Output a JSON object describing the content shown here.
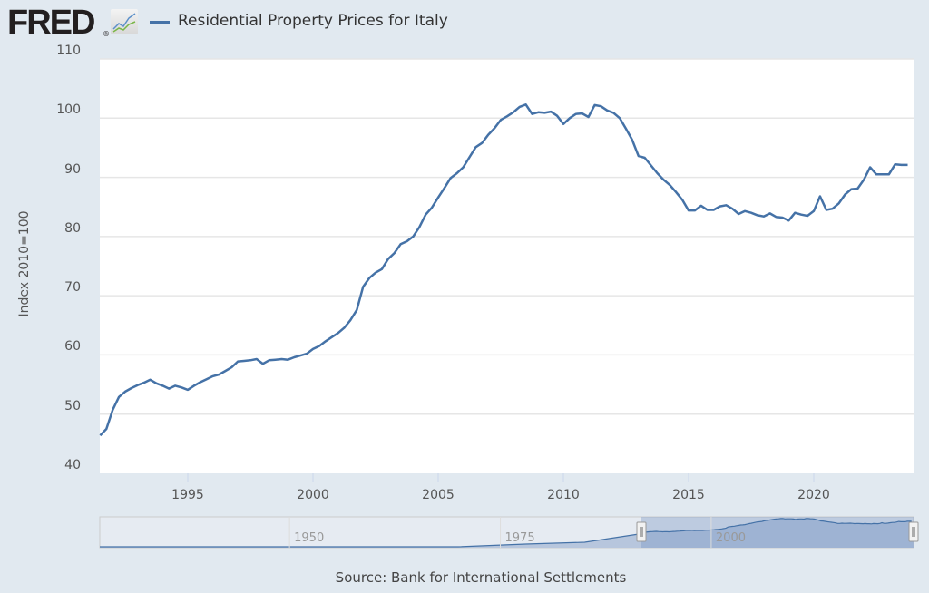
{
  "header": {
    "logo_text": "FRED",
    "logo_mark": "®",
    "legend_label": "Residential Property Prices for Italy"
  },
  "footer": {
    "source": "Source: Bank for International Settlements"
  },
  "navigator": {
    "tick_labels": [
      "1950",
      "1975",
      "2000"
    ]
  },
  "colors": {
    "series": "#4572a7",
    "background": "#e1e9f0",
    "plot": "#ffffff"
  },
  "chart_data": {
    "type": "line",
    "title": "Residential Property Prices for Italy",
    "ylabel": "Index 2010=100",
    "xlabel": "",
    "ylim": [
      40,
      110
    ],
    "xlim": [
      1991.5,
      2023.75
    ],
    "y_ticks": [
      "40",
      "50",
      "60",
      "70",
      "80",
      "90",
      "100",
      "110"
    ],
    "x_ticks": [
      "1995",
      "2000",
      "2005",
      "2010",
      "2015",
      "2020"
    ],
    "grid": true,
    "legend": "top-left",
    "frequency": "quarterly",
    "start": 1991.5,
    "step": 0.25,
    "series": [
      {
        "name": "Residential Property Prices for Italy",
        "values": [
          46.4,
          47.5,
          50.7,
          52.9,
          53.8,
          54.4,
          54.9,
          55.3,
          55.8,
          55.2,
          54.8,
          54.3,
          54.8,
          54.5,
          54.1,
          54.8,
          55.4,
          55.9,
          56.4,
          56.7,
          57.3,
          57.9,
          58.9,
          59.0,
          59.1,
          59.3,
          58.5,
          59.1,
          59.2,
          59.3,
          59.2,
          59.6,
          59.9,
          60.2,
          61.0,
          61.5,
          62.3,
          63.0,
          63.7,
          64.6,
          65.9,
          67.6,
          71.5,
          73.0,
          73.9,
          74.5,
          76.2,
          77.2,
          78.7,
          79.2,
          80.0,
          81.6,
          83.7,
          84.9,
          86.6,
          88.2,
          89.9,
          90.7,
          91.7,
          93.4,
          95.1,
          95.8,
          97.2,
          98.3,
          99.7,
          100.3,
          101.0,
          101.9,
          102.3,
          100.7,
          101.0,
          100.9,
          101.1,
          100.4,
          99.0,
          100.0,
          100.7,
          100.8,
          100.2,
          102.2,
          102.0,
          101.3,
          100.9,
          100.0,
          98.2,
          96.3,
          93.6,
          93.3,
          92.0,
          90.7,
          89.6,
          88.7,
          87.5,
          86.2,
          84.4,
          84.4,
          85.2,
          84.5,
          84.5,
          85.1,
          85.3,
          84.7,
          83.8,
          84.3,
          84.0,
          83.6,
          83.4,
          83.9,
          83.3,
          83.2,
          82.7,
          84.0,
          83.7,
          83.5,
          84.3,
          86.8,
          84.5,
          84.7,
          85.6,
          87.1,
          88.0,
          88.1,
          89.6,
          91.7,
          90.5,
          90.5,
          90.5,
          92.2,
          92.1,
          92.1
        ]
      }
    ]
  }
}
